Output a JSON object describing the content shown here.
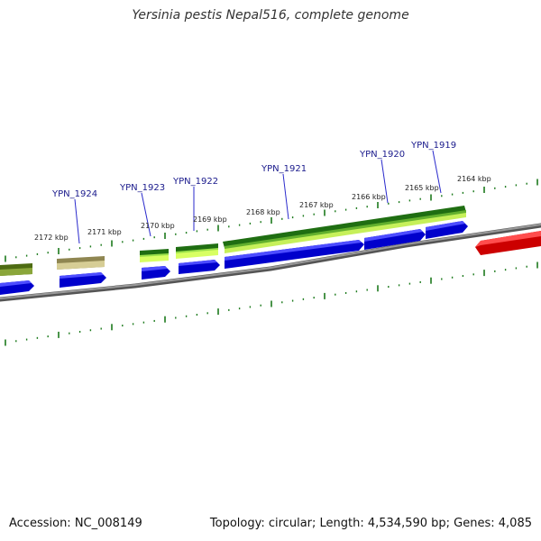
{
  "title": "Yersinia pestis Nepal516, complete genome",
  "footer": {
    "accession": "Accession: NC_008149",
    "summary": "Topology: circular; Length: 4,534,590 bp; Genes: 4,085"
  },
  "colors": {
    "backbone": "#7a7a7a",
    "tick": "#1c7a1c",
    "cds": "#1414e6",
    "gene_dark": "#2e7d1e",
    "gene_mid": "#8ad04a",
    "gene_light": "#c6f05a",
    "olive": "#5f7d1c",
    "khaki": "#b8ad72",
    "red": "#e61414",
    "label_line": "#2a2acc"
  },
  "gene_labels": [
    "YPN_1924",
    "YPN_1923",
    "YPN_1922",
    "YPN_1921",
    "YPN_1920",
    "YPN_1919"
  ],
  "kbp_labels": [
    "2172 kbp",
    "2171 kbp",
    "2170 kbp",
    "2169 kbp",
    "2168 kbp",
    "2167 kbp",
    "2166 kbp",
    "2165 kbp",
    "2164 kbp"
  ]
}
